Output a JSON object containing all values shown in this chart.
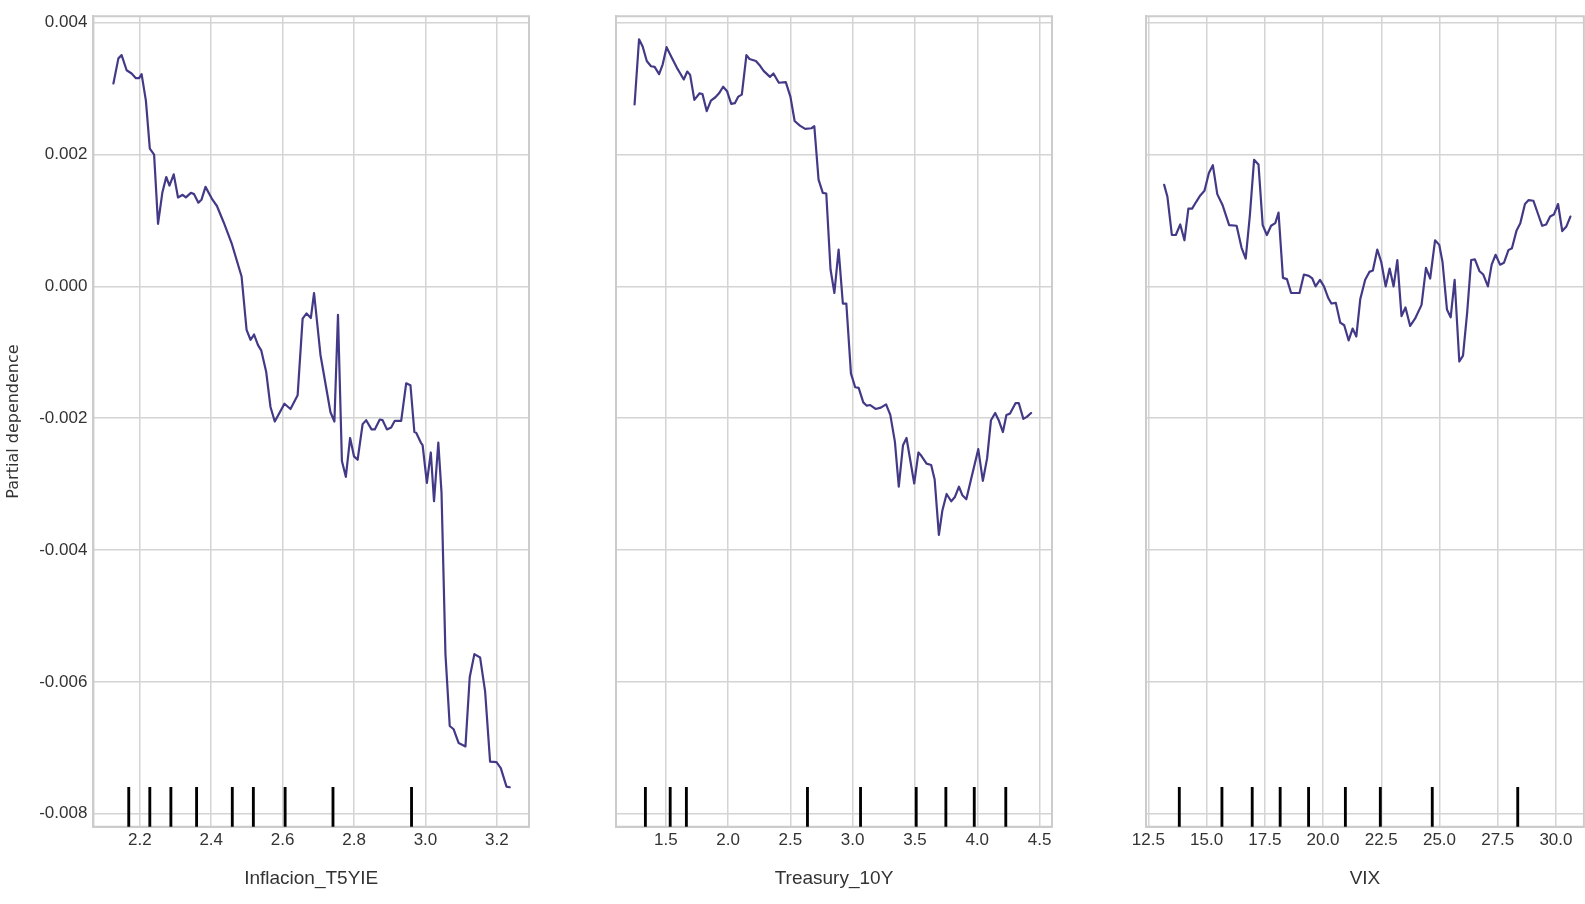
{
  "chart_data": [
    {
      "type": "line",
      "xlabel": "Inflacion_T5YIE",
      "ylabel": "Partial dependence",
      "xlim": [
        2.07,
        3.29
      ],
      "xticks": [
        {
          "value": 2.2,
          "label": "2.2"
        },
        {
          "value": 2.4,
          "label": "2.4"
        },
        {
          "value": 2.6,
          "label": "2.6"
        },
        {
          "value": 2.8,
          "label": "2.8"
        },
        {
          "value": 3.0,
          "label": "3.0"
        },
        {
          "value": 3.2,
          "label": "3.2"
        }
      ],
      "ylim": [
        -0.0082,
        0.0041
      ],
      "yticks": [
        {
          "value": -0.008,
          "label": "-0.008"
        },
        {
          "value": -0.006,
          "label": "-0.006"
        },
        {
          "value": -0.004,
          "label": "-0.004"
        },
        {
          "value": -0.002,
          "label": "-0.002"
        },
        {
          "value": 0,
          "label": "0.000"
        },
        {
          "value": 0.002,
          "label": "0.002"
        },
        {
          "value": 0.004,
          "label": "0.004"
        }
      ],
      "grid": true,
      "series": [
        {
          "color": "#433a87",
          "x": [
            2.126,
            2.14,
            2.149,
            2.163,
            2.177,
            2.189,
            2.198,
            2.205,
            2.217,
            2.228,
            2.24,
            2.251,
            2.263,
            2.274,
            2.283,
            2.295,
            2.307,
            2.32,
            2.329,
            2.343,
            2.352,
            2.364,
            2.373,
            2.384,
            2.403,
            2.416,
            2.435,
            2.458,
            2.485,
            2.499,
            2.51,
            2.52,
            2.531,
            2.54,
            2.554,
            2.566,
            2.578,
            2.591,
            2.605,
            2.622,
            2.642,
            2.656,
            2.667,
            2.679,
            2.688,
            2.706,
            2.734,
            2.745,
            2.755,
            2.766,
            2.777,
            2.789,
            2.8,
            2.81,
            2.824,
            2.834,
            2.849,
            2.858,
            2.872,
            2.88,
            2.892,
            2.904,
            2.914,
            2.932,
            2.946,
            2.958,
            2.969,
            2.974,
            2.987,
            2.992,
            3.004,
            3.015,
            3.024,
            3.036,
            3.045,
            3.056,
            3.068,
            3.079,
            3.093,
            3.112,
            3.124,
            3.137,
            3.153,
            3.167,
            3.181,
            3.199,
            3.211,
            3.227,
            3.236
          ],
          "values": [
            0.00308,
            0.00346,
            0.00351,
            0.00328,
            0.00323,
            0.00316,
            0.00316,
            0.00322,
            0.00282,
            0.00209,
            0.002,
            0.00095,
            0.00142,
            0.00166,
            0.00153,
            0.0017,
            0.00135,
            0.00139,
            0.00135,
            0.00142,
            0.0014,
            0.00127,
            0.00132,
            0.00151,
            0.00132,
            0.00122,
            0.00097,
            0.00064,
            0.00015,
            -0.00066,
            -0.00081,
            -0.00073,
            -0.00089,
            -0.00097,
            -0.0013,
            -0.00183,
            -0.00205,
            -0.00192,
            -0.00178,
            -0.00186,
            -0.00165,
            -0.00049,
            -0.00041,
            -0.00048,
            -0.0001,
            -0.00104,
            -0.00191,
            -0.00205,
            -0.00043,
            -0.00265,
            -0.00289,
            -0.0023,
            -0.00258,
            -0.00263,
            -0.00209,
            -0.00203,
            -0.00217,
            -0.00217,
            -0.00202,
            -0.00203,
            -0.00217,
            -0.00214,
            -0.00204,
            -0.00204,
            -0.00147,
            -0.0015,
            -0.00221,
            -0.00222,
            -0.00237,
            -0.00241,
            -0.00298,
            -0.00252,
            -0.00326,
            -0.00237,
            -0.00313,
            -0.00558,
            -0.00667,
            -0.00672,
            -0.00693,
            -0.00698,
            -0.00593,
            -0.00558,
            -0.00563,
            -0.00614,
            -0.00721,
            -0.00722,
            -0.00731,
            -0.00759,
            -0.0076
          ]
        },
        {
          "type": "bar",
          "color": "#000000",
          "x": [
            2.169,
            2.228,
            2.287,
            2.359,
            2.459,
            2.518,
            2.607,
            2.741,
            2.961
          ],
          "base": [
            -0.0082,
            -0.0082,
            -0.0082,
            -0.0082,
            -0.0082,
            -0.0082,
            -0.0082,
            -0.0082,
            -0.0082
          ],
          "values": [
            0.0006,
            0.0006,
            0.0006,
            0.0006,
            0.0006,
            0.0006,
            0.0006,
            0.0006,
            0.0006
          ]
        }
      ]
    },
    {
      "type": "line",
      "xlabel": "Treasury_10Y",
      "xlim": [
        1.1,
        4.6
      ],
      "xticks": [
        1.5,
        {
          "value": 2.0,
          "label": "2.0"
        },
        2.5,
        {
          "value": 3.0,
          "label": "3.0"
        },
        3.5,
        {
          "value": 4.0,
          "label": "4.0"
        },
        4.5
      ],
      "ylim": [
        -0.0082,
        0.0041
      ],
      "yticks": [
        -0.008,
        -0.006,
        -0.004,
        -0.002,
        0,
        0.002,
        0.004
      ],
      "grid": true,
      "tick_labels": "x",
      "series": [
        {
          "color": "#433a87",
          "x": [
            1.249,
            1.285,
            1.314,
            1.347,
            1.381,
            1.41,
            1.446,
            1.475,
            1.506,
            1.545,
            1.588,
            1.616,
            1.644,
            1.672,
            1.695,
            1.729,
            1.771,
            1.794,
            1.828,
            1.862,
            1.898,
            1.927,
            1.96,
            1.992,
            2.025,
            2.054,
            2.082,
            2.11,
            2.147,
            2.172,
            2.223,
            2.251,
            2.285,
            2.336,
            2.364,
            2.407,
            2.463,
            2.5,
            2.534,
            2.576,
            2.619,
            2.669,
            2.692,
            2.726,
            2.76,
            2.788,
            2.822,
            2.853,
            2.887,
            2.921,
            2.949,
            2.986,
            3.02,
            3.048,
            3.085,
            3.113,
            3.141,
            3.184,
            3.226,
            3.268,
            3.302,
            3.339,
            3.37,
            3.404,
            3.432,
            3.494,
            3.528,
            3.551,
            3.593,
            3.63,
            3.658,
            3.692,
            3.72,
            3.754,
            3.791,
            3.819,
            3.853,
            3.881,
            3.912,
            3.946,
            4.008,
            4.045,
            4.079,
            4.11,
            4.144,
            4.172,
            4.206,
            4.234,
            4.263,
            4.308,
            4.333,
            4.37,
            4.398,
            4.432
          ],
          "values": [
            0.00276,
            0.00375,
            0.00364,
            0.00342,
            0.00334,
            0.00333,
            0.00322,
            0.00337,
            0.00363,
            0.00348,
            0.00332,
            0.00323,
            0.00314,
            0.00326,
            0.00321,
            0.00283,
            0.00293,
            0.00292,
            0.00266,
            0.00282,
            0.00287,
            0.00293,
            0.00303,
            0.00296,
            0.00277,
            0.00278,
            0.00288,
            0.00291,
            0.00351,
            0.00345,
            0.00342,
            0.00336,
            0.00327,
            0.00318,
            0.00323,
            0.00309,
            0.0031,
            0.00288,
            0.00251,
            0.00244,
            0.00239,
            0.0024,
            0.00243,
            0.00162,
            0.00142,
            0.00141,
            0.00026,
            -0.0001,
            0.00056,
            -0.00026,
            -0.00026,
            -0.00132,
            -0.00153,
            -0.00154,
            -0.00176,
            -0.00181,
            -0.0018,
            -0.00186,
            -0.00184,
            -0.00179,
            -0.00195,
            -0.00236,
            -0.00304,
            -0.00241,
            -0.0023,
            -0.00299,
            -0.00252,
            -0.00257,
            -0.00269,
            -0.00271,
            -0.00293,
            -0.00377,
            -0.0034,
            -0.00315,
            -0.00326,
            -0.0032,
            -0.00304,
            -0.00317,
            -0.00323,
            -0.00296,
            -0.00247,
            -0.00295,
            -0.00261,
            -0.00203,
            -0.00192,
            -0.00203,
            -0.00221,
            -0.00195,
            -0.00193,
            -0.00177,
            -0.00177,
            -0.00201,
            -0.00198,
            -0.00192
          ]
        },
        {
          "type": "bar",
          "color": "#000000",
          "x": [
            1.336,
            1.535,
            1.665,
            2.637,
            3.063,
            3.51,
            3.748,
            3.976,
            4.229
          ],
          "base": [
            -0.0082,
            -0.0082,
            -0.0082,
            -0.0082,
            -0.0082,
            -0.0082,
            -0.0082,
            -0.0082,
            -0.0082
          ],
          "values": [
            0.0006,
            0.0006,
            0.0006,
            0.0006,
            0.0006,
            0.0006,
            0.0006,
            0.0006,
            0.0006
          ]
        }
      ]
    },
    {
      "type": "line",
      "xlabel": "VIX",
      "xlim": [
        12.4,
        31.2
      ],
      "xticks": [
        12.5,
        {
          "value": 15,
          "label": "15.0"
        },
        17.5,
        {
          "value": 20,
          "label": "20.0"
        },
        22.5,
        {
          "value": 25,
          "label": "25.0"
        },
        27.5,
        {
          "value": 30,
          "label": "30.0"
        }
      ],
      "ylim": [
        -0.0082,
        0.0041
      ],
      "yticks": [
        -0.008,
        -0.006,
        -0.004,
        -0.002,
        0,
        0.002,
        0.004
      ],
      "grid": true,
      "tick_labels": "x",
      "series": [
        {
          "color": "#433a87",
          "x": [
            13.18,
            13.32,
            13.51,
            13.68,
            13.87,
            14.05,
            14.22,
            14.38,
            14.55,
            14.73,
            14.91,
            15.1,
            15.27,
            15.46,
            15.68,
            15.97,
            16.29,
            16.5,
            16.68,
            16.86,
            17.04,
            17.23,
            17.41,
            17.59,
            17.77,
            17.95,
            18.09,
            18.28,
            18.45,
            18.63,
            18.82,
            18.99,
            19.18,
            19.39,
            19.54,
            19.68,
            19.87,
            20.04,
            20.23,
            20.36,
            20.55,
            20.74,
            20.91,
            21.1,
            21.27,
            21.43,
            21.6,
            21.81,
            21.99,
            22.14,
            22.33,
            22.5,
            22.69,
            22.86,
            23.03,
            23.19,
            23.37,
            23.54,
            23.74,
            23.95,
            24.23,
            24.42,
            24.6,
            24.81,
            24.99,
            25.13,
            25.32,
            25.48,
            25.65,
            25.85,
            26.01,
            26.19,
            26.36,
            26.52,
            26.72,
            26.88,
            27.08,
            27.24,
            27.41,
            27.6,
            27.77,
            27.96,
            28.11,
            28.31,
            28.47,
            28.67,
            28.83,
            29.03,
            29.22,
            29.41,
            29.58,
            29.75,
            29.91,
            30.09,
            30.27,
            30.45,
            30.62
          ],
          "values": [
            0.00154,
            0.00136,
            0.00078,
            0.00078,
            0.00094,
            0.0007,
            0.00118,
            0.00118,
            0.00128,
            0.00138,
            0.00145,
            0.00172,
            0.00184,
            0.0014,
            0.00124,
            0.00093,
            0.00092,
            0.00059,
            0.00042,
            0.00108,
            0.00192,
            0.00185,
            0.00093,
            0.00078,
            0.00092,
            0.00096,
            0.00112,
            0.00013,
            0.00011,
            -0.0001,
            -0.0001,
            -0.0001,
            0.00018,
            0.00016,
            0.00012,
            0,
            0.0001,
            0,
            -0.00018,
            -0.00026,
            -0.00025,
            -0.00055,
            -0.00059,
            -0.00082,
            -0.00064,
            -0.00076,
            -0.00019,
            0.0001,
            0.00022,
            0.00024,
            0.00056,
            0.00037,
            0,
            0.00027,
            0,
            0.0004,
            -0.00045,
            -0.00032,
            -0.0006,
            -0.00049,
            -0.00028,
            0.00028,
            0.00012,
            0.0007,
            0.00063,
            0.00037,
            -0.00035,
            -0.00047,
            0.0001,
            -0.00114,
            -0.00105,
            -0.00039,
            0.0004,
            0.00041,
            0.00023,
            0.00018,
            0,
            0.00033,
            0.00048,
            0.00033,
            0.00036,
            0.00055,
            0.00058,
            0.00085,
            0.00096,
            0.00125,
            0.00131,
            0.0013,
            0.00111,
            0.00092,
            0.00094,
            0.00106,
            0.00109,
            0.00125,
            0.00084,
            0.00091,
            0.00106
          ]
        },
        {
          "type": "bar",
          "color": "#000000",
          "x": [
            13.83,
            15.66,
            16.96,
            18.16,
            19.38,
            20.96,
            22.46,
            24.69,
            28.36
          ],
          "base": [
            -0.0082,
            -0.0082,
            -0.0082,
            -0.0082,
            -0.0082,
            -0.0082,
            -0.0082,
            -0.0082,
            -0.0082
          ],
          "values": [
            0.0006,
            0.0006,
            0.0006,
            0.0006,
            0.0006,
            0.0006,
            0.0006,
            0.0006,
            0.0006
          ]
        }
      ]
    }
  ]
}
